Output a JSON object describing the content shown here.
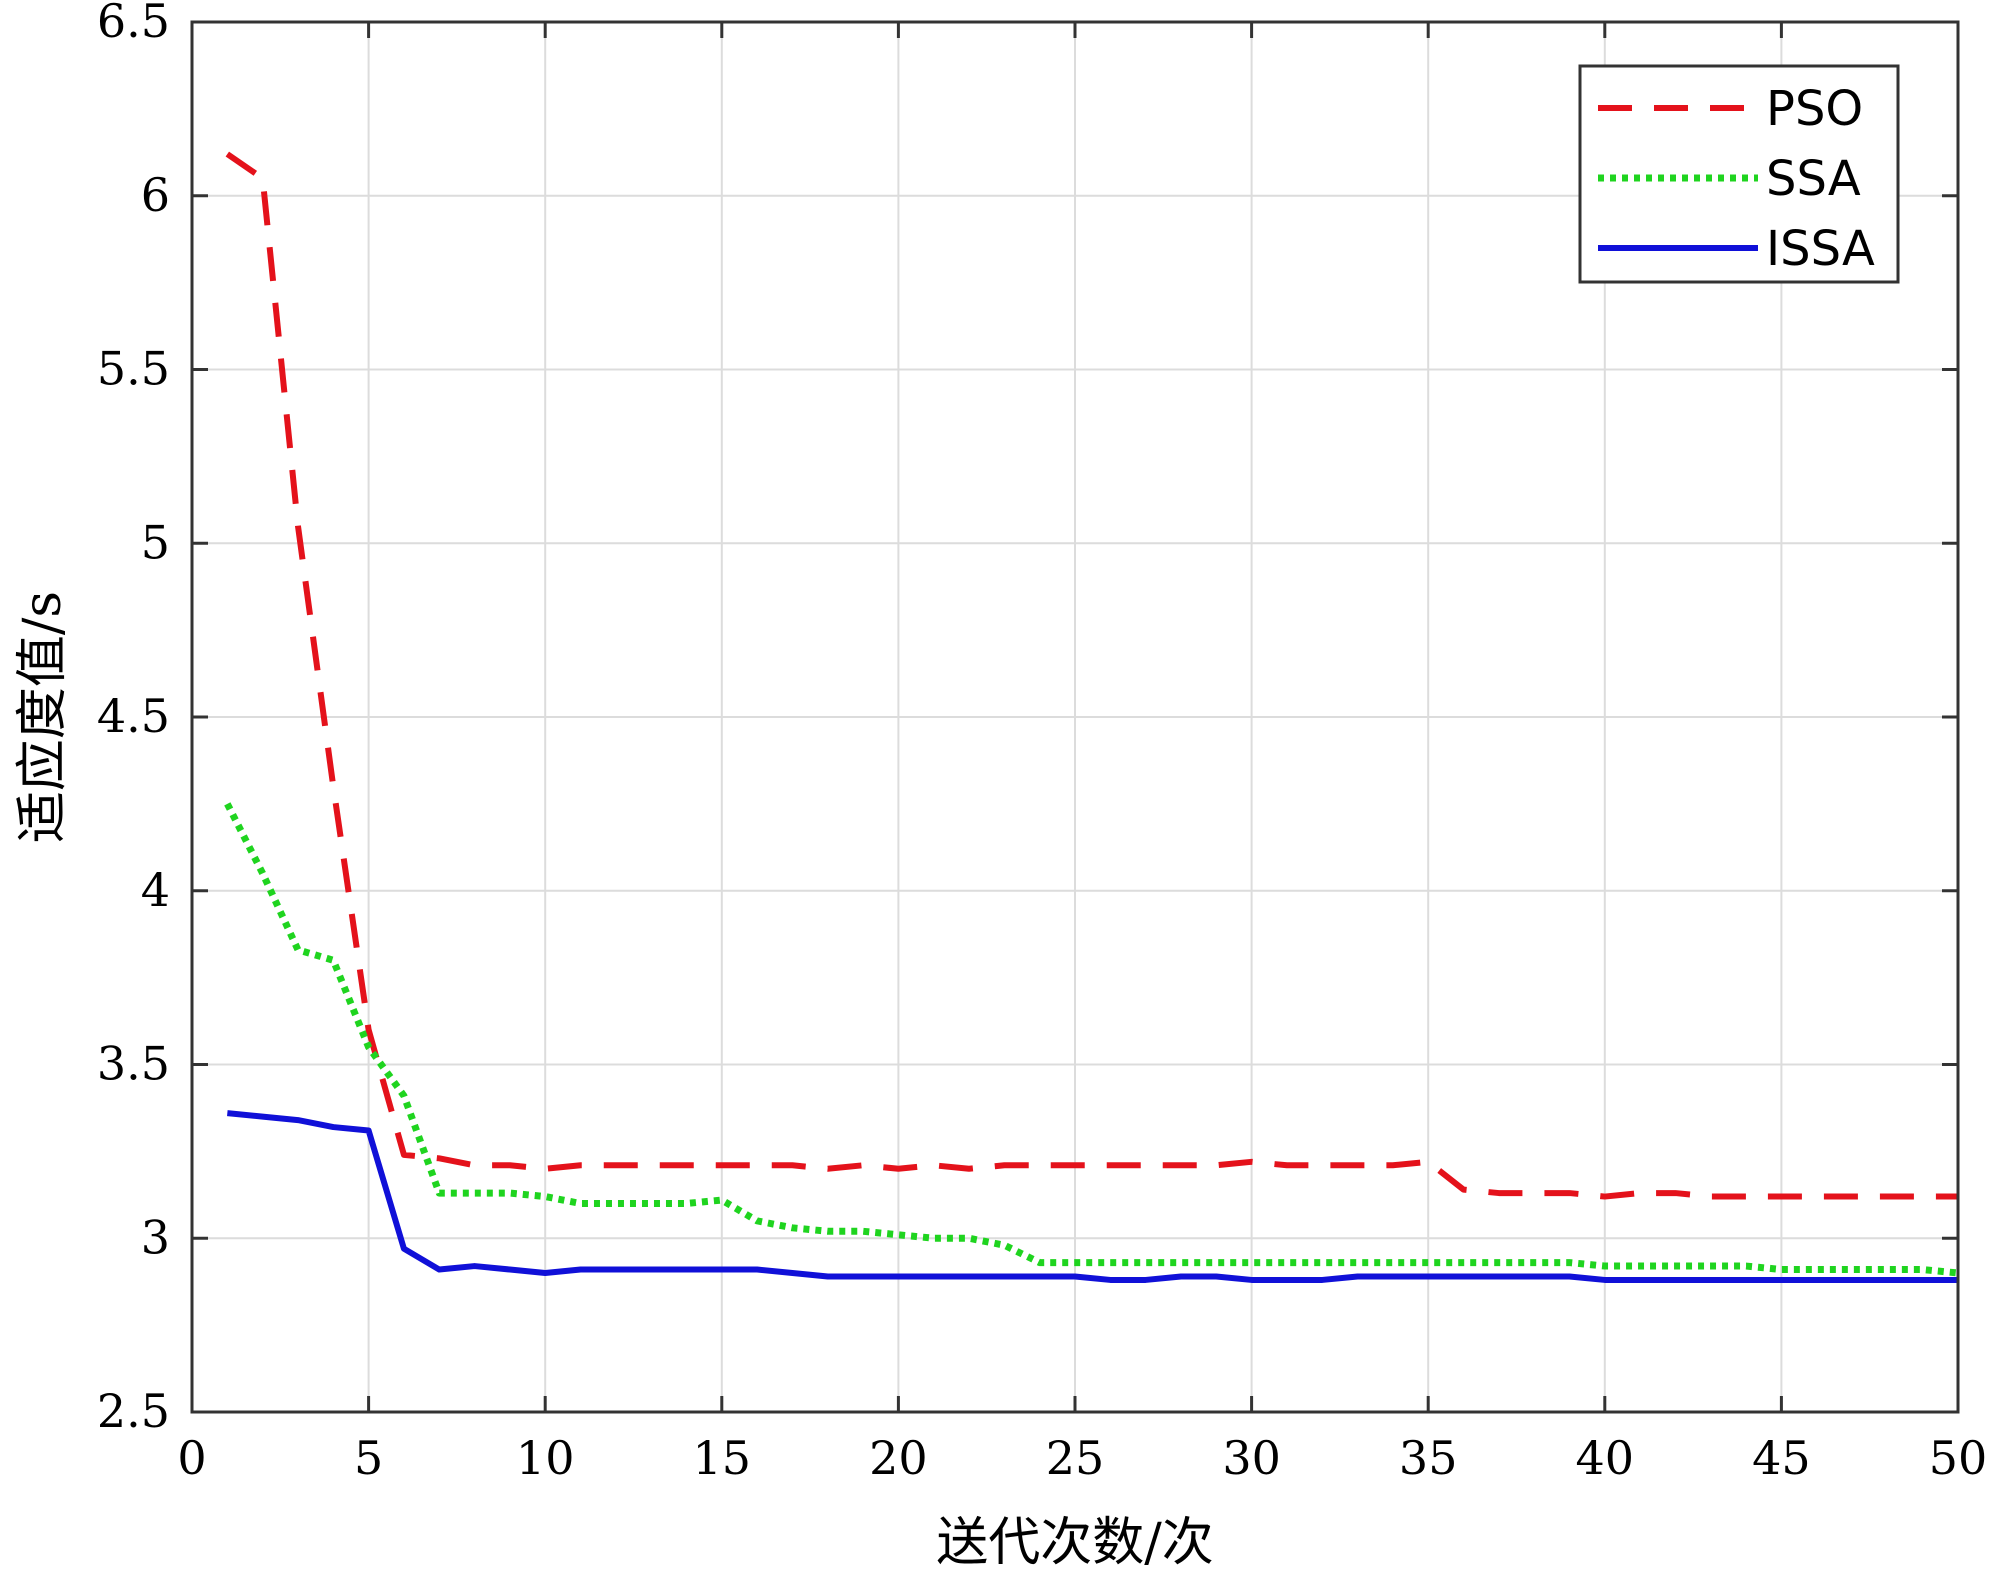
{
  "chart_data": {
    "type": "line",
    "title": "",
    "xlabel": "送代次数/次",
    "ylabel": "适应度值/s",
    "xlim": [
      0,
      50
    ],
    "ylim": [
      2.5,
      6.5
    ],
    "xticks": [
      "0",
      "5",
      "10",
      "15",
      "20",
      "25",
      "30",
      "35",
      "40",
      "45",
      "50"
    ],
    "yticks": [
      "2.5",
      "3",
      "3.5",
      "4",
      "4.5",
      "5",
      "5.5",
      "6",
      "6.5"
    ],
    "grid": true,
    "legend_position": "top-right",
    "x": [
      1,
      2,
      3,
      4,
      5,
      6,
      7,
      8,
      9,
      10,
      11,
      12,
      13,
      14,
      15,
      16,
      17,
      18,
      19,
      20,
      21,
      22,
      23,
      24,
      25,
      26,
      27,
      28,
      29,
      30,
      31,
      32,
      33,
      34,
      35,
      36,
      37,
      38,
      39,
      40,
      41,
      42,
      43,
      44,
      45,
      46,
      47,
      48,
      49,
      50
    ],
    "series": [
      {
        "name": "PSO",
        "color": "#e4121b",
        "style": "dashed",
        "values": [
          6.12,
          6.05,
          5.05,
          4.3,
          3.6,
          3.24,
          3.23,
          3.21,
          3.21,
          3.2,
          3.21,
          3.21,
          3.21,
          3.21,
          3.21,
          3.21,
          3.21,
          3.2,
          3.21,
          3.2,
          3.21,
          3.2,
          3.21,
          3.21,
          3.21,
          3.21,
          3.21,
          3.21,
          3.21,
          3.22,
          3.21,
          3.21,
          3.21,
          3.21,
          3.22,
          3.14,
          3.13,
          3.13,
          3.13,
          3.12,
          3.13,
          3.13,
          3.12,
          3.12,
          3.12,
          3.12,
          3.12,
          3.12,
          3.12,
          3.12
        ]
      },
      {
        "name": "SSA",
        "color": "#1fd41f",
        "style": "dotted",
        "values": [
          4.25,
          4.05,
          3.83,
          3.8,
          3.55,
          3.41,
          3.13,
          3.13,
          3.13,
          3.12,
          3.1,
          3.1,
          3.1,
          3.1,
          3.11,
          3.05,
          3.03,
          3.02,
          3.02,
          3.01,
          3.0,
          3.0,
          2.98,
          2.93,
          2.93,
          2.93,
          2.93,
          2.93,
          2.93,
          2.93,
          2.93,
          2.93,
          2.93,
          2.93,
          2.93,
          2.93,
          2.93,
          2.93,
          2.93,
          2.92,
          2.92,
          2.92,
          2.92,
          2.92,
          2.91,
          2.91,
          2.91,
          2.91,
          2.91,
          2.9
        ]
      },
      {
        "name": "ISSA",
        "color": "#1010d8",
        "style": "solid",
        "values": [
          3.36,
          3.35,
          3.34,
          3.32,
          3.31,
          2.97,
          2.91,
          2.92,
          2.91,
          2.9,
          2.91,
          2.91,
          2.91,
          2.91,
          2.91,
          2.91,
          2.9,
          2.89,
          2.89,
          2.89,
          2.89,
          2.89,
          2.89,
          2.89,
          2.89,
          2.88,
          2.88,
          2.89,
          2.89,
          2.88,
          2.88,
          2.88,
          2.89,
          2.89,
          2.89,
          2.89,
          2.89,
          2.89,
          2.89,
          2.88,
          2.88,
          2.88,
          2.88,
          2.88,
          2.88,
          2.88,
          2.88,
          2.88,
          2.88,
          2.88
        ]
      }
    ]
  }
}
